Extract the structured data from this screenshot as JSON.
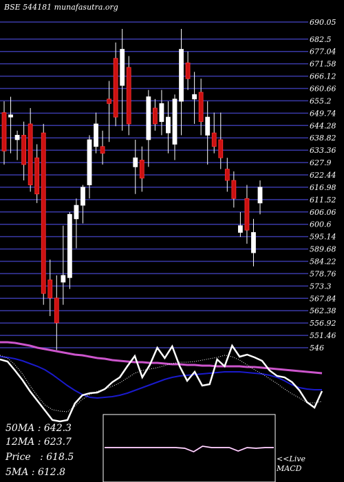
{
  "header": {
    "text": "BSE 544181 munafasutra.org"
  },
  "stats": {
    "ma50": "50MA : 642.3",
    "ma12": "12MA : 623.7",
    "price": "Price   : 618.5",
    "ma5": "5MA : 612.8"
  },
  "macd_label": {
    "line1": "<<Live",
    "line2": "MACD"
  },
  "colors": {
    "background": "#000000",
    "grid": "#3a3aa8",
    "bull": "#ffffff",
    "bear": "#cc1111",
    "ma_pink": "#cc55cc",
    "ma_blue": "#1a1acc",
    "ma_white": "#ffffff"
  },
  "chart_data": {
    "type": "candlestick",
    "ylim": [
      546,
      690.05
    ],
    "y_ticks": [
      690.05,
      682.5,
      677.04,
      671.58,
      666.12,
      660.66,
      655.2,
      649.74,
      644.28,
      638.82,
      633.36,
      627.9,
      622.44,
      616.98,
      611.52,
      606.06,
      600.6,
      595.14,
      589.68,
      584.22,
      578.76,
      573.3,
      567.84,
      562.38,
      556.92,
      551.46,
      546
    ],
    "candles": [
      {
        "o": 650,
        "h": 655,
        "l": 627,
        "c": 633,
        "dir": "bear"
      },
      {
        "o": 648,
        "h": 657,
        "l": 632,
        "c": 649,
        "dir": "bull"
      },
      {
        "o": 638,
        "h": 642,
        "l": 629,
        "c": 640,
        "dir": "bull"
      },
      {
        "o": 640,
        "h": 646,
        "l": 620,
        "c": 627,
        "dir": "bear"
      },
      {
        "o": 645,
        "h": 652,
        "l": 615,
        "c": 618,
        "dir": "bear"
      },
      {
        "o": 630,
        "h": 636,
        "l": 610,
        "c": 614,
        "dir": "bear"
      },
      {
        "o": 641,
        "h": 645,
        "l": 565,
        "c": 570,
        "dir": "bear"
      },
      {
        "o": 576,
        "h": 585,
        "l": 560,
        "c": 568,
        "dir": "bear"
      },
      {
        "o": 568,
        "h": 578,
        "l": 545,
        "c": 557,
        "dir": "bear"
      },
      {
        "o": 575,
        "h": 600,
        "l": 565,
        "c": 578,
        "dir": "bull"
      },
      {
        "o": 577,
        "h": 606,
        "l": 572,
        "c": 605,
        "dir": "bull"
      },
      {
        "o": 603,
        "h": 612,
        "l": 590,
        "c": 609,
        "dir": "bull"
      },
      {
        "o": 609,
        "h": 618,
        "l": 601,
        "c": 617,
        "dir": "bull"
      },
      {
        "o": 618,
        "h": 640,
        "l": 612,
        "c": 638,
        "dir": "bull"
      },
      {
        "o": 635,
        "h": 650,
        "l": 632,
        "c": 645,
        "dir": "bull"
      },
      {
        "o": 635,
        "h": 642,
        "l": 627,
        "c": 632,
        "dir": "bear"
      },
      {
        "o": 656,
        "h": 664,
        "l": 637,
        "c": 654,
        "dir": "bear"
      },
      {
        "o": 674,
        "h": 681,
        "l": 644,
        "c": 648,
        "dir": "bear"
      },
      {
        "o": 662,
        "h": 687,
        "l": 642,
        "c": 678,
        "dir": "bull"
      },
      {
        "o": 670,
        "h": 675,
        "l": 640,
        "c": 645,
        "dir": "bear"
      },
      {
        "o": 626,
        "h": 638,
        "l": 614,
        "c": 630,
        "dir": "bull"
      },
      {
        "o": 629,
        "h": 635,
        "l": 615,
        "c": 621,
        "dir": "bear"
      },
      {
        "o": 638,
        "h": 660,
        "l": 626,
        "c": 657,
        "dir": "bull"
      },
      {
        "o": 652,
        "h": 656,
        "l": 642,
        "c": 645,
        "dir": "bear"
      },
      {
        "o": 646,
        "h": 660,
        "l": 640,
        "c": 654,
        "dir": "bull"
      },
      {
        "o": 648,
        "h": 655,
        "l": 632,
        "c": 641,
        "dir": "bull"
      },
      {
        "o": 636,
        "h": 658,
        "l": 629,
        "c": 656,
        "dir": "bull"
      },
      {
        "o": 655,
        "h": 687,
        "l": 640,
        "c": 678,
        "dir": "bull"
      },
      {
        "o": 672,
        "h": 677,
        "l": 660,
        "c": 665,
        "dir": "bear"
      },
      {
        "o": 656,
        "h": 668,
        "l": 645,
        "c": 658,
        "dir": "bull"
      },
      {
        "o": 659,
        "h": 665,
        "l": 640,
        "c": 646,
        "dir": "bear"
      },
      {
        "o": 640,
        "h": 655,
        "l": 627,
        "c": 648,
        "dir": "bull"
      },
      {
        "o": 641,
        "h": 650,
        "l": 632,
        "c": 635,
        "dir": "bear"
      },
      {
        "o": 638,
        "h": 650,
        "l": 625,
        "c": 630,
        "dir": "bear"
      },
      {
        "o": 625,
        "h": 630,
        "l": 615,
        "c": 620,
        "dir": "bear"
      },
      {
        "o": 620,
        "h": 624,
        "l": 608,
        "c": 612,
        "dir": "bear"
      },
      {
        "o": 600,
        "h": 606,
        "l": 595,
        "c": 597,
        "dir": "bull"
      },
      {
        "o": 612,
        "h": 618,
        "l": 592,
        "c": 598,
        "dir": "bear"
      },
      {
        "o": 588,
        "h": 603,
        "l": 582,
        "c": 597,
        "dir": "bull"
      },
      {
        "o": 610,
        "h": 620,
        "l": 605,
        "c": 617,
        "dir": "bull"
      }
    ],
    "lower_panel": {
      "pink_ma": [
        497,
        497,
        498,
        500,
        502,
        505,
        507,
        509,
        511,
        513,
        515,
        516,
        518,
        520,
        521,
        523,
        524,
        525,
        526,
        526,
        527,
        527,
        528,
        529,
        529,
        530,
        530,
        531,
        531,
        532,
        532,
        532,
        532,
        533,
        533,
        534,
        535,
        536,
        537,
        538,
        539,
        540,
        541,
        542
      ],
      "blue_ma": [
        518,
        519,
        521,
        524,
        528,
        532,
        537,
        544,
        552,
        560,
        567,
        573,
        577,
        578,
        577,
        576,
        574,
        571,
        567,
        563,
        559,
        555,
        551,
        548,
        546,
        545,
        544,
        543,
        542,
        541,
        540,
        540,
        540,
        541,
        542,
        543,
        545,
        548,
        553,
        559,
        563,
        565,
        566,
        566
      ],
      "black_ma": [
        516,
        520,
        530,
        543,
        560,
        575,
        588,
        595,
        597,
        598,
        590,
        580,
        573,
        568,
        565,
        561,
        556,
        549,
        542,
        538,
        536,
        534,
        531,
        528,
        526,
        526,
        525,
        523,
        521,
        519,
        516,
        518,
        523,
        530,
        537,
        543,
        550,
        557,
        565,
        572,
        578,
        585,
        585,
        583
      ],
      "white_ma": [
        522,
        525,
        538,
        552,
        568,
        582,
        596,
        610,
        612,
        610,
        586,
        574,
        571,
        570,
        565,
        555,
        548,
        532,
        517,
        548,
        530,
        505,
        520,
        503,
        532,
        553,
        540,
        560,
        558,
        522,
        532,
        502,
        518,
        515,
        519,
        524,
        538,
        546,
        548,
        555,
        567,
        584,
        592,
        568
      ]
    },
    "macd": {
      "line": [
        650,
        650,
        650,
        650,
        650,
        650,
        650,
        650,
        650,
        651,
        656,
        648,
        650,
        650,
        650,
        655,
        650,
        651,
        650,
        650
      ]
    }
  }
}
